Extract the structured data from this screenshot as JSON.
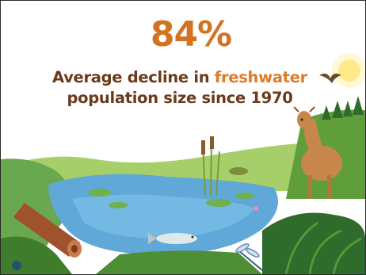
{
  "headline": {
    "stat": "84%",
    "line1_prefix": "Average decline in",
    "line1_highlight": "freshwater",
    "line2": "population size since 1970"
  },
  "colors": {
    "stat": "#d4731f",
    "text": "#6b3a1a",
    "highlight": "#e07b22",
    "water": "#5fa8d8",
    "grass": "#7cb342",
    "sky": "#ffffff"
  },
  "icons": [
    "bird-icon",
    "sun-icon",
    "deer-icon",
    "fish-icon",
    "dragonfly-icon",
    "frog-icon",
    "log-icon",
    "logo-mark-icon"
  ]
}
